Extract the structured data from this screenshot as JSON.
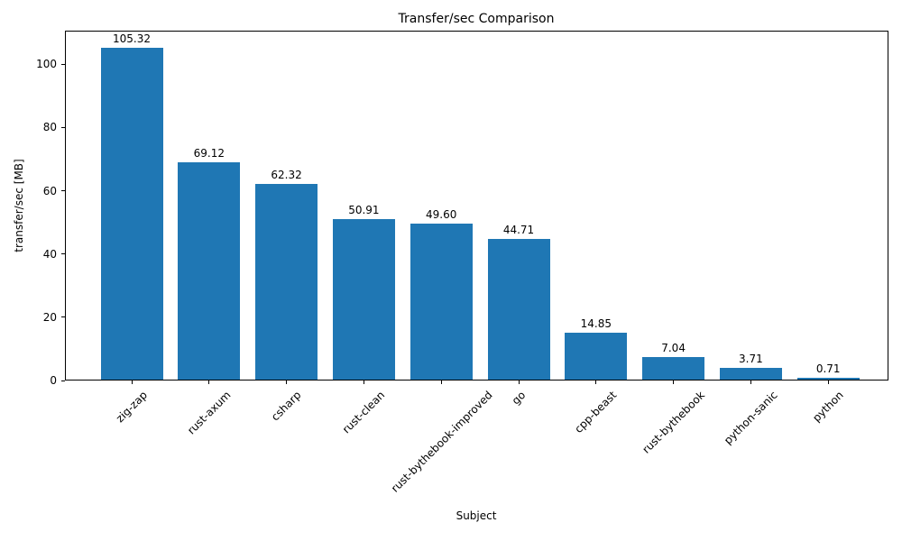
{
  "chart_data": {
    "type": "bar",
    "title": "Transfer/sec Comparison",
    "xlabel": "Subject",
    "ylabel": "transfer/sec [MB]",
    "categories": [
      "zig-zap",
      "rust-axum",
      "csharp",
      "rust-clean",
      "rust-bythebook-improved",
      "go",
      "cpp-beast",
      "rust-bythebook",
      "python-sanic",
      "python"
    ],
    "values": [
      105.32,
      69.12,
      62.32,
      50.91,
      49.6,
      44.71,
      14.85,
      7.04,
      3.71,
      0.71
    ],
    "bar_labels": [
      "105.32",
      "69.12",
      "62.32",
      "50.91",
      "49.60",
      "44.71",
      "14.85",
      "7.04",
      "3.71",
      "0.71"
    ],
    "yticks": [
      0,
      20,
      40,
      60,
      80,
      100
    ],
    "ylim": [
      0,
      110.6
    ],
    "bar_color": "#1f77b4",
    "grid": false,
    "legend_position": "none"
  }
}
